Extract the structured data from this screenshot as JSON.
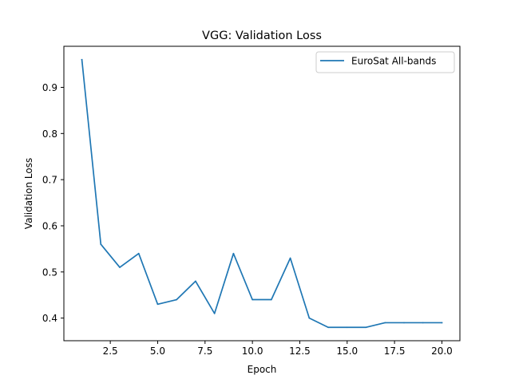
{
  "chart_data": {
    "type": "line",
    "title": "VGG: Validation Loss",
    "xlabel": "Epoch",
    "ylabel": "Validation Loss",
    "xlim": [
      0.05,
      20.95
    ],
    "ylim": [
      0.351,
      0.989
    ],
    "xticks": [
      2.5,
      5.0,
      7.5,
      10.0,
      12.5,
      15.0,
      17.5,
      20.0
    ],
    "xtick_labels": [
      "2.5",
      "5.0",
      "7.5",
      "10.0",
      "12.5",
      "15.0",
      "17.5",
      "20.0"
    ],
    "yticks": [
      0.4,
      0.5,
      0.6,
      0.7,
      0.8,
      0.9
    ],
    "ytick_labels": [
      "0.4",
      "0.5",
      "0.6",
      "0.7",
      "0.8",
      "0.9"
    ],
    "grid": false,
    "legend_position": "upper right",
    "series": [
      {
        "name": "EuroSat All-bands",
        "color": "#1f77b4",
        "x": [
          1,
          2,
          3,
          4,
          5,
          6,
          7,
          8,
          9,
          10,
          11,
          12,
          13,
          14,
          15,
          16,
          17,
          18,
          19,
          20
        ],
        "values": [
          0.96,
          0.56,
          0.51,
          0.54,
          0.43,
          0.44,
          0.48,
          0.41,
          0.54,
          0.44,
          0.44,
          0.53,
          0.4,
          0.38,
          0.38,
          0.38,
          0.39,
          0.39,
          0.39,
          0.39
        ]
      }
    ]
  }
}
